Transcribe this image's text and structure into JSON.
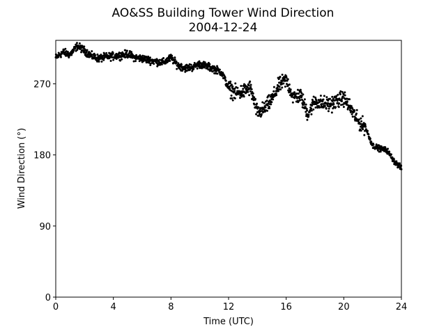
{
  "chart_data": {
    "type": "scatter",
    "title": "AO&SS Building Tower Wind Direction",
    "subtitle": "2004-12-24",
    "xlabel": "Time (UTC)",
    "ylabel": "Wind Direction (°)",
    "xlim": [
      0,
      24
    ],
    "ylim": [
      0,
      325
    ],
    "xticks": [
      0,
      4,
      8,
      12,
      16,
      20,
      24
    ],
    "yticks": [
      0,
      90,
      180,
      270
    ],
    "grid": false,
    "marker_color": "#000000",
    "series": [
      {
        "x": [
          0.0,
          0.5,
          1.0,
          1.5,
          2.0,
          2.5,
          3.0,
          3.5,
          4.0,
          4.5,
          5.0,
          5.5,
          6.0,
          6.5,
          7.0,
          7.5,
          8.0,
          8.5,
          9.0,
          9.5,
          10.0,
          10.5,
          11.0,
          11.5,
          12.0,
          12.5,
          13.0,
          13.5,
          14.0,
          14.5,
          15.0,
          15.5,
          16.0,
          16.5,
          17.0,
          17.5,
          18.0,
          18.5,
          19.0,
          19.5,
          20.0,
          20.5,
          21.0,
          21.5,
          22.0,
          22.5,
          23.0,
          23.5,
          24.0
        ],
        "y": [
          303,
          310,
          307,
          318,
          312,
          305,
          302,
          304,
          305,
          306,
          308,
          303,
          302,
          300,
          298,
          297,
          303,
          293,
          290,
          291,
          295,
          292,
          289,
          285,
          265,
          258,
          260,
          265,
          233,
          238,
          250,
          268,
          275,
          253,
          255,
          232,
          248,
          245,
          244,
          248,
          252,
          238,
          222,
          215,
          192,
          188,
          186,
          172,
          163
        ]
      }
    ]
  }
}
